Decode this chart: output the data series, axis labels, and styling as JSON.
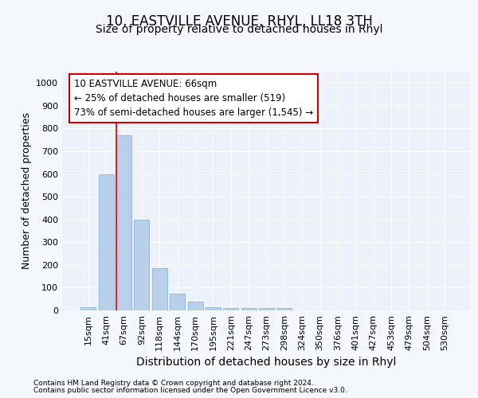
{
  "title": "10, EASTVILLE AVENUE, RHYL, LL18 3TH",
  "subtitle": "Size of property relative to detached houses in Rhyl",
  "xlabel": "Distribution of detached houses by size in Rhyl",
  "ylabel": "Number of detached properties",
  "categories": [
    "15sqm",
    "41sqm",
    "67sqm",
    "92sqm",
    "118sqm",
    "144sqm",
    "170sqm",
    "195sqm",
    "221sqm",
    "247sqm",
    "273sqm",
    "298sqm",
    "324sqm",
    "350sqm",
    "376sqm",
    "401sqm",
    "427sqm",
    "453sqm",
    "479sqm",
    "504sqm",
    "530sqm"
  ],
  "values": [
    15,
    600,
    770,
    400,
    185,
    75,
    38,
    15,
    12,
    10,
    10,
    10,
    0,
    0,
    0,
    0,
    0,
    0,
    0,
    0,
    0
  ],
  "bar_color": "#b8d0ea",
  "bar_edge_color": "#8ab4d8",
  "red_line_x": 2.0,
  "annotation_text": "10 EASTVILLE AVENUE: 66sqm\n← 25% of detached houses are smaller (519)\n73% of semi-detached houses are larger (1,545) →",
  "annotation_box_facecolor": "#ffffff",
  "annotation_box_edgecolor": "#cc0000",
  "ylim": [
    0,
    1050
  ],
  "yticks": [
    0,
    100,
    200,
    300,
    400,
    500,
    600,
    700,
    800,
    900,
    1000
  ],
  "footer_line1": "Contains HM Land Registry data © Crown copyright and database right 2024.",
  "footer_line2": "Contains public sector information licensed under the Open Government Licence v3.0.",
  "fig_facecolor": "#f4f7fc",
  "plot_facecolor": "#edf2fa",
  "grid_color": "#ffffff",
  "title_fontsize": 12,
  "subtitle_fontsize": 10,
  "tick_fontsize": 8,
  "ylabel_fontsize": 9,
  "xlabel_fontsize": 10,
  "annotation_fontsize": 8.5,
  "footer_fontsize": 6.5
}
